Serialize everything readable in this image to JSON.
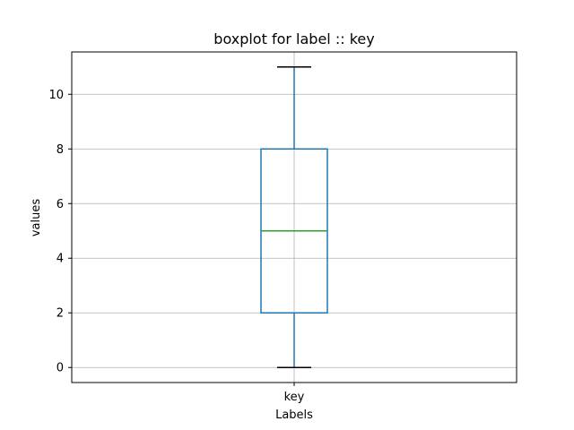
{
  "chart_data": {
    "type": "box",
    "title": "boxplot for label :: key",
    "xlabel": "Labels",
    "ylabel": "values",
    "categories": [
      "key"
    ],
    "boxes": [
      {
        "category": "key",
        "whisker_low": 0,
        "q1": 2,
        "median": 5,
        "q3": 8,
        "whisker_high": 11
      }
    ],
    "ylim": [
      -0.55,
      11.55
    ],
    "yticks": [
      0,
      2,
      4,
      6,
      8,
      10
    ],
    "grid": true,
    "colors": {
      "box": "#1f77b4",
      "median": "#2ca02c",
      "caps": "#000000",
      "grid": "#b0b0b0"
    }
  }
}
